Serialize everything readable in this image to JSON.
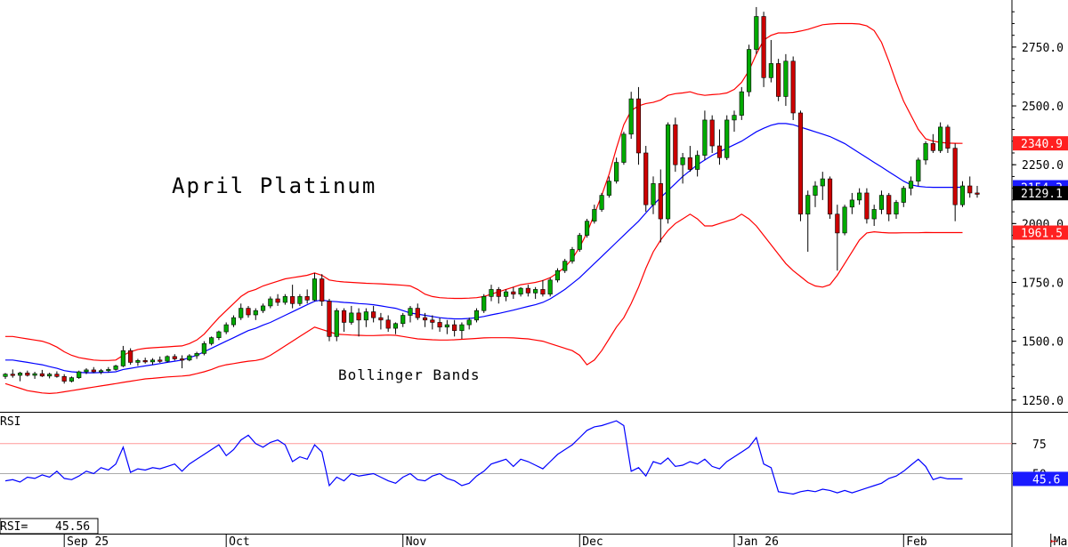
{
  "chart_data": {
    "type": "candlestick",
    "title": "April Platinum",
    "band_label": "Bollinger Bands",
    "price_axis": {
      "ylim": [
        1200,
        2950
      ],
      "ticks": [
        "2750.0",
        "2500.0",
        "2250.0",
        "2000.0",
        "1750.0",
        "1500.0",
        "1250.0"
      ],
      "tick_values": [
        2750,
        2500,
        2250,
        2000,
        1750,
        1500,
        1250
      ]
    },
    "rsi_axis": {
      "label": "RSI",
      "ylim": [
        0,
        100
      ],
      "ticks": [
        "75",
        "50"
      ],
      "tick_values": [
        75,
        50
      ]
    },
    "x_labels": [
      "Sep 25",
      "Oct",
      "Nov",
      "Dec",
      "Jan 26",
      "Feb",
      "Mar"
    ],
    "x_label_positions": [
      8,
      30,
      54,
      78,
      99,
      122,
      142
    ],
    "last_values": {
      "upper_band": "2340.9",
      "middle_band": "2154.3",
      "close": "2129.1",
      "lower_band": "1961.5",
      "rsi": "45.6"
    },
    "rsi_readout": {
      "label": "RSI=",
      "value": "45.56"
    },
    "colors": {
      "up": "#00aa00",
      "down": "#cc0000",
      "band": "#ff0000",
      "middle": "#0000ff",
      "rsi_line": "#0000ff",
      "grid": "#ff9999"
    },
    "candles": [
      [
        1350,
        1365,
        1340,
        1360
      ],
      [
        1360,
        1380,
        1345,
        1355
      ],
      [
        1355,
        1370,
        1330,
        1365
      ],
      [
        1365,
        1375,
        1350,
        1355
      ],
      [
        1355,
        1370,
        1340,
        1362
      ],
      [
        1362,
        1378,
        1348,
        1352
      ],
      [
        1352,
        1366,
        1342,
        1360
      ],
      [
        1360,
        1372,
        1345,
        1350
      ],
      [
        1350,
        1360,
        1320,
        1330
      ],
      [
        1330,
        1350,
        1325,
        1345
      ],
      [
        1345,
        1375,
        1340,
        1370
      ],
      [
        1370,
        1385,
        1360,
        1378
      ],
      [
        1378,
        1390,
        1365,
        1370
      ],
      [
        1370,
        1382,
        1360,
        1375
      ],
      [
        1375,
        1390,
        1368,
        1380
      ],
      [
        1380,
        1400,
        1375,
        1395
      ],
      [
        1395,
        1480,
        1390,
        1460
      ],
      [
        1460,
        1470,
        1400,
        1410
      ],
      [
        1410,
        1425,
        1395,
        1418
      ],
      [
        1418,
        1430,
        1405,
        1412
      ],
      [
        1412,
        1428,
        1400,
        1420
      ],
      [
        1420,
        1435,
        1408,
        1415
      ],
      [
        1415,
        1440,
        1410,
        1435
      ],
      [
        1435,
        1445,
        1418,
        1425
      ],
      [
        1425,
        1440,
        1385,
        1420
      ],
      [
        1420,
        1445,
        1415,
        1438
      ],
      [
        1438,
        1455,
        1425,
        1448
      ],
      [
        1448,
        1500,
        1440,
        1490
      ],
      [
        1490,
        1520,
        1482,
        1515
      ],
      [
        1515,
        1545,
        1505,
        1540
      ],
      [
        1540,
        1580,
        1530,
        1570
      ],
      [
        1570,
        1610,
        1560,
        1600
      ],
      [
        1600,
        1660,
        1590,
        1640
      ],
      [
        1640,
        1650,
        1600,
        1612
      ],
      [
        1612,
        1640,
        1590,
        1630
      ],
      [
        1630,
        1660,
        1620,
        1650
      ],
      [
        1650,
        1690,
        1640,
        1680
      ],
      [
        1680,
        1700,
        1650,
        1665
      ],
      [
        1665,
        1700,
        1655,
        1690
      ],
      [
        1690,
        1740,
        1640,
        1660
      ],
      [
        1660,
        1700,
        1650,
        1690
      ],
      [
        1690,
        1720,
        1660,
        1675
      ],
      [
        1675,
        1790,
        1670,
        1765
      ],
      [
        1765,
        1785,
        1650,
        1670
      ],
      [
        1670,
        1680,
        1500,
        1520
      ],
      [
        1520,
        1640,
        1500,
        1630
      ],
      [
        1630,
        1640,
        1540,
        1580
      ],
      [
        1580,
        1650,
        1570,
        1620
      ],
      [
        1620,
        1640,
        1520,
        1590
      ],
      [
        1590,
        1640,
        1560,
        1625
      ],
      [
        1625,
        1650,
        1580,
        1600
      ],
      [
        1600,
        1620,
        1550,
        1590
      ],
      [
        1590,
        1610,
        1540,
        1555
      ],
      [
        1555,
        1580,
        1530,
        1575
      ],
      [
        1575,
        1620,
        1560,
        1610
      ],
      [
        1610,
        1650,
        1580,
        1640
      ],
      [
        1640,
        1660,
        1590,
        1600
      ],
      [
        1600,
        1620,
        1560,
        1590
      ],
      [
        1590,
        1610,
        1550,
        1580
      ],
      [
        1580,
        1600,
        1540,
        1560
      ],
      [
        1560,
        1590,
        1530,
        1570
      ],
      [
        1570,
        1590,
        1520,
        1545
      ],
      [
        1545,
        1580,
        1510,
        1570
      ],
      [
        1570,
        1600,
        1550,
        1590
      ],
      [
        1590,
        1640,
        1580,
        1630
      ],
      [
        1630,
        1700,
        1620,
        1690
      ],
      [
        1690,
        1740,
        1670,
        1720
      ],
      [
        1720,
        1730,
        1660,
        1690
      ],
      [
        1690,
        1720,
        1670,
        1710
      ],
      [
        1710,
        1730,
        1680,
        1700
      ],
      [
        1700,
        1730,
        1690,
        1725
      ],
      [
        1725,
        1740,
        1690,
        1705
      ],
      [
        1705,
        1730,
        1680,
        1720
      ],
      [
        1720,
        1760,
        1690,
        1700
      ],
      [
        1700,
        1770,
        1690,
        1760
      ],
      [
        1760,
        1810,
        1750,
        1800
      ],
      [
        1800,
        1850,
        1790,
        1840
      ],
      [
        1840,
        1900,
        1830,
        1890
      ],
      [
        1890,
        1960,
        1880,
        1950
      ],
      [
        1950,
        2020,
        1940,
        2010
      ],
      [
        2010,
        2080,
        2000,
        2060
      ],
      [
        2060,
        2130,
        2050,
        2120
      ],
      [
        2120,
        2200,
        2110,
        2180
      ],
      [
        2180,
        2280,
        2170,
        2260
      ],
      [
        2260,
        2390,
        2250,
        2380
      ],
      [
        2380,
        2560,
        2360,
        2530
      ],
      [
        2530,
        2580,
        2250,
        2300
      ],
      [
        2300,
        2330,
        2050,
        2080
      ],
      [
        2080,
        2200,
        2040,
        2170
      ],
      [
        2170,
        2230,
        1920,
        2020
      ],
      [
        2020,
        2430,
        2000,
        2420
      ],
      [
        2420,
        2450,
        2220,
        2250
      ],
      [
        2250,
        2300,
        2170,
        2280
      ],
      [
        2280,
        2330,
        2220,
        2230
      ],
      [
        2230,
        2310,
        2200,
        2290
      ],
      [
        2290,
        2480,
        2270,
        2440
      ],
      [
        2440,
        2460,
        2300,
        2330
      ],
      [
        2330,
        2400,
        2250,
        2280
      ],
      [
        2280,
        2460,
        2270,
        2440
      ],
      [
        2440,
        2480,
        2390,
        2460
      ],
      [
        2460,
        2580,
        2440,
        2560
      ],
      [
        2560,
        2760,
        2540,
        2740
      ],
      [
        2740,
        2920,
        2720,
        2880
      ],
      [
        2880,
        2900,
        2580,
        2620
      ],
      [
        2620,
        2780,
        2600,
        2680
      ],
      [
        2680,
        2700,
        2520,
        2540
      ],
      [
        2540,
        2720,
        2500,
        2690
      ],
      [
        2690,
        2710,
        2440,
        2470
      ],
      [
        2470,
        2480,
        2010,
        2040
      ],
      [
        2040,
        2140,
        1880,
        2120
      ],
      [
        2120,
        2180,
        2070,
        2160
      ],
      [
        2160,
        2220,
        2100,
        2190
      ],
      [
        2190,
        2200,
        2020,
        2040
      ],
      [
        2040,
        2080,
        1800,
        1960
      ],
      [
        1960,
        2080,
        1950,
        2070
      ],
      [
        2070,
        2130,
        2040,
        2100
      ],
      [
        2100,
        2150,
        2080,
        2130
      ],
      [
        2130,
        2150,
        2000,
        2020
      ],
      [
        2020,
        2080,
        1990,
        2060
      ],
      [
        2060,
        2140,
        2040,
        2120
      ],
      [
        2120,
        2130,
        2010,
        2040
      ],
      [
        2040,
        2100,
        2020,
        2090
      ],
      [
        2090,
        2160,
        2070,
        2150
      ],
      [
        2150,
        2200,
        2120,
        2180
      ],
      [
        2180,
        2280,
        2160,
        2270
      ],
      [
        2270,
        2350,
        2250,
        2340
      ],
      [
        2340,
        2380,
        2300,
        2310
      ],
      [
        2310,
        2430,
        2300,
        2410
      ],
      [
        2410,
        2420,
        2300,
        2320
      ],
      [
        2320,
        2340,
        2010,
        2080
      ],
      [
        2080,
        2180,
        2070,
        2160
      ],
      [
        2160,
        2200,
        2110,
        2130
      ],
      [
        2130,
        2160,
        2110,
        2129
      ]
    ],
    "upper_band": [
      1520,
      1520,
      1515,
      1510,
      1505,
      1500,
      1490,
      1475,
      1455,
      1440,
      1430,
      1425,
      1420,
      1418,
      1418,
      1420,
      1440,
      1455,
      1465,
      1470,
      1472,
      1474,
      1476,
      1478,
      1480,
      1490,
      1505,
      1530,
      1565,
      1600,
      1630,
      1660,
      1690,
      1710,
      1720,
      1735,
      1745,
      1755,
      1765,
      1770,
      1775,
      1780,
      1790,
      1780,
      1760,
      1755,
      1752,
      1750,
      1748,
      1746,
      1745,
      1744,
      1742,
      1740,
      1738,
      1735,
      1720,
      1700,
      1690,
      1685,
      1683,
      1682,
      1682,
      1683,
      1685,
      1690,
      1700,
      1710,
      1720,
      1730,
      1740,
      1745,
      1750,
      1758,
      1770,
      1790,
      1815,
      1850,
      1900,
      1960,
      2040,
      2120,
      2210,
      2320,
      2420,
      2480,
      2500,
      2510,
      2515,
      2525,
      2545,
      2552,
      2555,
      2560,
      2550,
      2545,
      2548,
      2550,
      2555,
      2570,
      2600,
      2650,
      2720,
      2780,
      2800,
      2810,
      2810,
      2812,
      2818,
      2825,
      2835,
      2845,
      2848,
      2850,
      2850,
      2850,
      2848,
      2840,
      2820,
      2770,
      2690,
      2600,
      2520,
      2460,
      2400,
      2360,
      2350,
      2345,
      2342,
      2341,
      2340.9
    ],
    "middle_band": [
      1420,
      1420,
      1415,
      1410,
      1405,
      1400,
      1392,
      1385,
      1375,
      1370,
      1368,
      1366,
      1366,
      1367,
      1368,
      1370,
      1380,
      1385,
      1390,
      1395,
      1400,
      1405,
      1410,
      1415,
      1420,
      1430,
      1440,
      1455,
      1470,
      1485,
      1500,
      1515,
      1530,
      1545,
      1555,
      1568,
      1580,
      1595,
      1610,
      1625,
      1640,
      1655,
      1670,
      1675,
      1670,
      1668,
      1665,
      1663,
      1660,
      1658,
      1655,
      1650,
      1645,
      1640,
      1630,
      1620,
      1615,
      1610,
      1605,
      1600,
      1597,
      1595,
      1595,
      1597,
      1600,
      1605,
      1612,
      1618,
      1625,
      1632,
      1640,
      1648,
      1655,
      1665,
      1680,
      1700,
      1720,
      1745,
      1770,
      1800,
      1830,
      1860,
      1890,
      1920,
      1950,
      1980,
      2010,
      2045,
      2080,
      2110,
      2140,
      2170,
      2200,
      2225,
      2250,
      2270,
      2290,
      2305,
      2320,
      2335,
      2350,
      2370,
      2390,
      2405,
      2418,
      2425,
      2425,
      2420,
      2410,
      2400,
      2390,
      2380,
      2370,
      2355,
      2340,
      2320,
      2300,
      2280,
      2260,
      2240,
      2220,
      2200,
      2180,
      2165,
      2158,
      2155,
      2154,
      2154,
      2154,
      2154,
      2154.3
    ],
    "lower_band": [
      1320,
      1310,
      1300,
      1290,
      1285,
      1280,
      1278,
      1280,
      1285,
      1290,
      1295,
      1300,
      1305,
      1310,
      1315,
      1320,
      1325,
      1330,
      1335,
      1340,
      1342,
      1345,
      1348,
      1350,
      1352,
      1355,
      1362,
      1370,
      1380,
      1392,
      1400,
      1405,
      1410,
      1415,
      1418,
      1425,
      1440,
      1460,
      1480,
      1500,
      1520,
      1540,
      1560,
      1550,
      1540,
      1530,
      1528,
      1526,
      1525,
      1524,
      1524,
      1525,
      1526,
      1525,
      1520,
      1515,
      1510,
      1508,
      1506,
      1505,
      1505,
      1506,
      1508,
      1510,
      1512,
      1514,
      1515,
      1515,
      1515,
      1514,
      1512,
      1510,
      1505,
      1500,
      1490,
      1480,
      1470,
      1460,
      1440,
      1400,
      1420,
      1460,
      1510,
      1560,
      1600,
      1660,
      1730,
      1810,
      1880,
      1930,
      1970,
      2000,
      2020,
      2040,
      2020,
      1990,
      1990,
      2000,
      2010,
      2020,
      2040,
      2020,
      1990,
      1950,
      1910,
      1870,
      1830,
      1800,
      1775,
      1750,
      1735,
      1730,
      1740,
      1780,
      1830,
      1880,
      1930,
      1960,
      1965,
      1962,
      1960,
      1960,
      1961,
      1961,
      1961,
      1962,
      1961.5,
      1961.5,
      1961.5,
      1961.5,
      1961.5
    ],
    "rsi": [
      44,
      45,
      43,
      47,
      46,
      49,
      47,
      52,
      46,
      45,
      48,
      52,
      50,
      55,
      53,
      58,
      72,
      51,
      54,
      53,
      55,
      54,
      56,
      58,
      52,
      58,
      62,
      66,
      70,
      74,
      65,
      70,
      78,
      82,
      75,
      72,
      76,
      78,
      74,
      60,
      64,
      62,
      74,
      68,
      40,
      47,
      44,
      50,
      48,
      49,
      50,
      47,
      44,
      42,
      47,
      50,
      45,
      44,
      48,
      50,
      46,
      44,
      40,
      42,
      48,
      52,
      58,
      60,
      62,
      56,
      62,
      60,
      57,
      54,
      60,
      66,
      70,
      74,
      80,
      86,
      89,
      90,
      92,
      94,
      90,
      52,
      55,
      48,
      60,
      58,
      63,
      56,
      57,
      60,
      58,
      62,
      56,
      54,
      60,
      64,
      68,
      72,
      80,
      58,
      55,
      35,
      34,
      33,
      35,
      36,
      35,
      37,
      36,
      34,
      36,
      34,
      36,
      38,
      40,
      42,
      46,
      48,
      52,
      57,
      62,
      56,
      45,
      47,
      45.6,
      45.6,
      45.6
    ]
  }
}
